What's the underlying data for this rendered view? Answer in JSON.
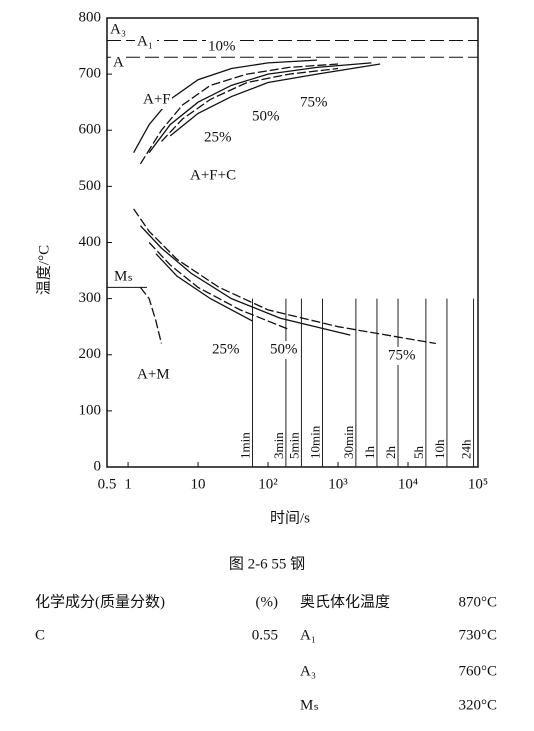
{
  "chart_data": {
    "type": "cct",
    "xlabel": "时间/s",
    "ylabel": "温度/°C",
    "xscale": "log",
    "xlim": [
      0.5,
      100000
    ],
    "ylim": [
      0,
      800
    ],
    "xticks": [
      0.5,
      1,
      10,
      {
        "value": 100,
        "label": "10²"
      },
      {
        "value": 1000,
        "label": "10³"
      },
      {
        "value": 10000,
        "label": "10⁴"
      },
      {
        "value": 100000,
        "label": "10⁵"
      }
    ],
    "yticks": [
      0,
      100,
      200,
      300,
      400,
      500,
      600,
      700,
      800
    ],
    "critical_lines": [
      {
        "name": "A₃",
        "value": 760
      },
      {
        "name": "A₁",
        "value": 730
      },
      {
        "name": "Mₛ",
        "value": 320
      }
    ],
    "time_marks": [
      {
        "value": 60,
        "label": "1min"
      },
      {
        "value": 180,
        "label": "3min"
      },
      {
        "value": 300,
        "label": "5min"
      },
      {
        "value": 600,
        "label": "10min"
      },
      {
        "value": 1800,
        "label": "30min"
      },
      {
        "value": 3600,
        "label": "1h"
      },
      {
        "value": 7200,
        "label": "2h"
      },
      {
        "value": 18000,
        "label": "5h"
      },
      {
        "value": 36000,
        "label": "10h"
      },
      {
        "value": 86400,
        "label": "24h"
      }
    ],
    "color": "#111111",
    "series": [
      {
        "x": [
          1.2,
          2,
          4,
          10,
          30,
          100,
          500
        ],
        "values": [
          560,
          610,
          655,
          690,
          710,
          720,
          725
        ]
      },
      {
        "x": [
          1.5,
          3,
          6,
          15,
          50,
          200,
          1000
        ],
        "values": [
          540,
          600,
          645,
          680,
          700,
          712,
          718
        ]
      },
      {
        "x": [
          2,
          4,
          10,
          30,
          100,
          500,
          3000
        ],
        "values": [
          560,
          610,
          650,
          680,
          700,
          712,
          720
        ]
      },
      {
        "x": [
          3,
          6,
          15,
          50,
          200,
          1000
        ],
        "values": [
          580,
          620,
          655,
          685,
          700,
          710
        ]
      },
      {
        "x": [
          4,
          10,
          30,
          100,
          500,
          4000
        ],
        "values": [
          590,
          630,
          660,
          685,
          700,
          718
        ]
      },
      {
        "x": [
          1.2,
          2,
          5,
          20,
          100,
          1000,
          25000
        ],
        "values": [
          460,
          420,
          370,
          320,
          280,
          250,
          220
        ]
      },
      {
        "x": [
          1.5,
          3,
          8,
          30,
          150,
          1500
        ],
        "values": [
          430,
          390,
          345,
          300,
          265,
          235
        ]
      },
      {
        "x": [
          2,
          4,
          10,
          40,
          200
        ],
        "values": [
          400,
          360,
          320,
          280,
          245
        ]
      },
      {
        "x": [
          2.5,
          5,
          15,
          60
        ],
        "values": [
          380,
          340,
          300,
          260
        ]
      },
      {
        "x": [
          1.5,
          2,
          2.5,
          3
        ],
        "values": [
          320,
          300,
          260,
          220
        ]
      }
    ],
    "annotations": [
      "A₃",
      "A₁",
      "A",
      "A+F",
      "10%",
      "25%",
      "50%",
      "75%",
      "A+F+C",
      "Mₛ",
      "25%",
      "50%",
      "75%",
      "A+M"
    ]
  },
  "caption": "图 2-6   55 钢",
  "composition_header": [
    "化学成分(质量分数)",
    "(%)"
  ],
  "composition": [
    [
      "C",
      "0.55"
    ]
  ],
  "temperatures": [
    [
      "奥氏体化温度",
      "870°C"
    ],
    [
      "A₁",
      "730°C"
    ],
    [
      "A₃",
      "760°C"
    ],
    [
      "Mₛ",
      "320°C"
    ]
  ]
}
